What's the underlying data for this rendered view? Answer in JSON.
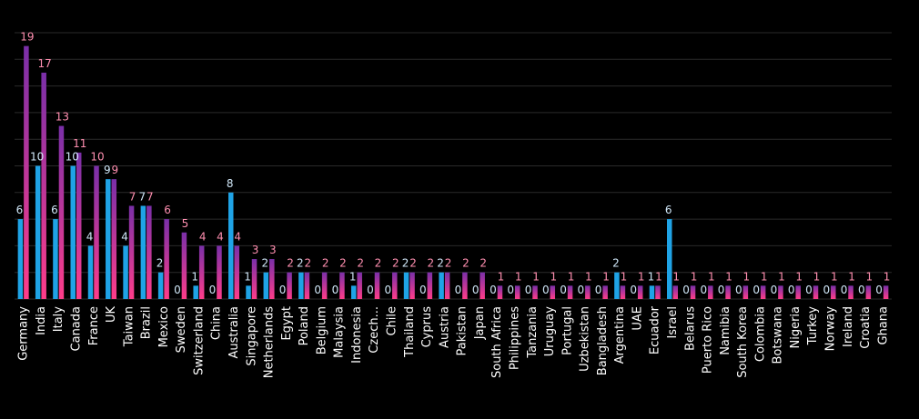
{
  "chart_data": {
    "type": "bar",
    "title": "",
    "xlabel": "",
    "ylabel": "",
    "ylim": [
      0,
      20
    ],
    "grid": true,
    "gridlines": [
      2,
      4,
      6,
      8,
      10,
      12,
      14,
      16,
      18,
      20
    ],
    "background": "#000000",
    "colors": {
      "series_a": "#1FA3E6",
      "series_b_gradient_top": "#7A2FA8",
      "series_b_gradient_bottom": "#FF3D8A",
      "label_a": "#CFE6F7",
      "label_b": "#FF8FB0",
      "axis_label": "#FFFFFF",
      "grid": "#2A2A2A"
    },
    "categories": [
      "Germany",
      "India",
      "Italy",
      "Canada",
      "France",
      "UK",
      "Taiwan",
      "Brazil",
      "Mexico",
      "Sweden",
      "Switzerland",
      "China",
      "Australia",
      "Singapore",
      "Netherlands",
      "Egypt",
      "Poland",
      "Belgium",
      "Malaysia",
      "Indonesia",
      "Czech...",
      "Chile",
      "Thailand",
      "Cyprus",
      "Austria",
      "Pakistan",
      "Japan",
      "South Africa",
      "Philippines",
      "Tanzania",
      "Uruguay",
      "Portugal",
      "Uzbekistan",
      "Bangladesh",
      "Argentina",
      "UAE",
      "Ecuador",
      "Israel",
      "Belarus",
      "Puerto Rico",
      "Namibia",
      "South Korea",
      "Colombia",
      "Botswana",
      "Nigeria",
      "Turkey",
      "Norway",
      "Ireland",
      "Croatia",
      "Ghana"
    ],
    "series": [
      {
        "values": [
          6,
          10,
          6,
          10,
          4,
          9,
          4,
          7,
          2,
          0,
          1,
          0,
          8,
          1,
          2,
          0,
          2,
          0,
          0,
          1,
          0,
          0,
          2,
          0,
          2,
          0,
          0,
          0,
          0,
          0,
          0,
          0,
          0,
          0,
          2,
          0,
          1,
          6,
          0,
          0,
          0,
          0,
          0,
          0,
          0,
          0,
          0,
          0,
          0,
          0
        ]
      },
      {
        "values": [
          19,
          17,
          13,
          11,
          10,
          9,
          7,
          7,
          6,
          5,
          4,
          4,
          4,
          3,
          3,
          2,
          2,
          2,
          2,
          2,
          2,
          2,
          2,
          2,
          2,
          2,
          2,
          1,
          1,
          1,
          1,
          1,
          1,
          1,
          1,
          1,
          1,
          1,
          1,
          1,
          1,
          1,
          1,
          1,
          1,
          1,
          1,
          1,
          1,
          1
        ]
      }
    ]
  }
}
